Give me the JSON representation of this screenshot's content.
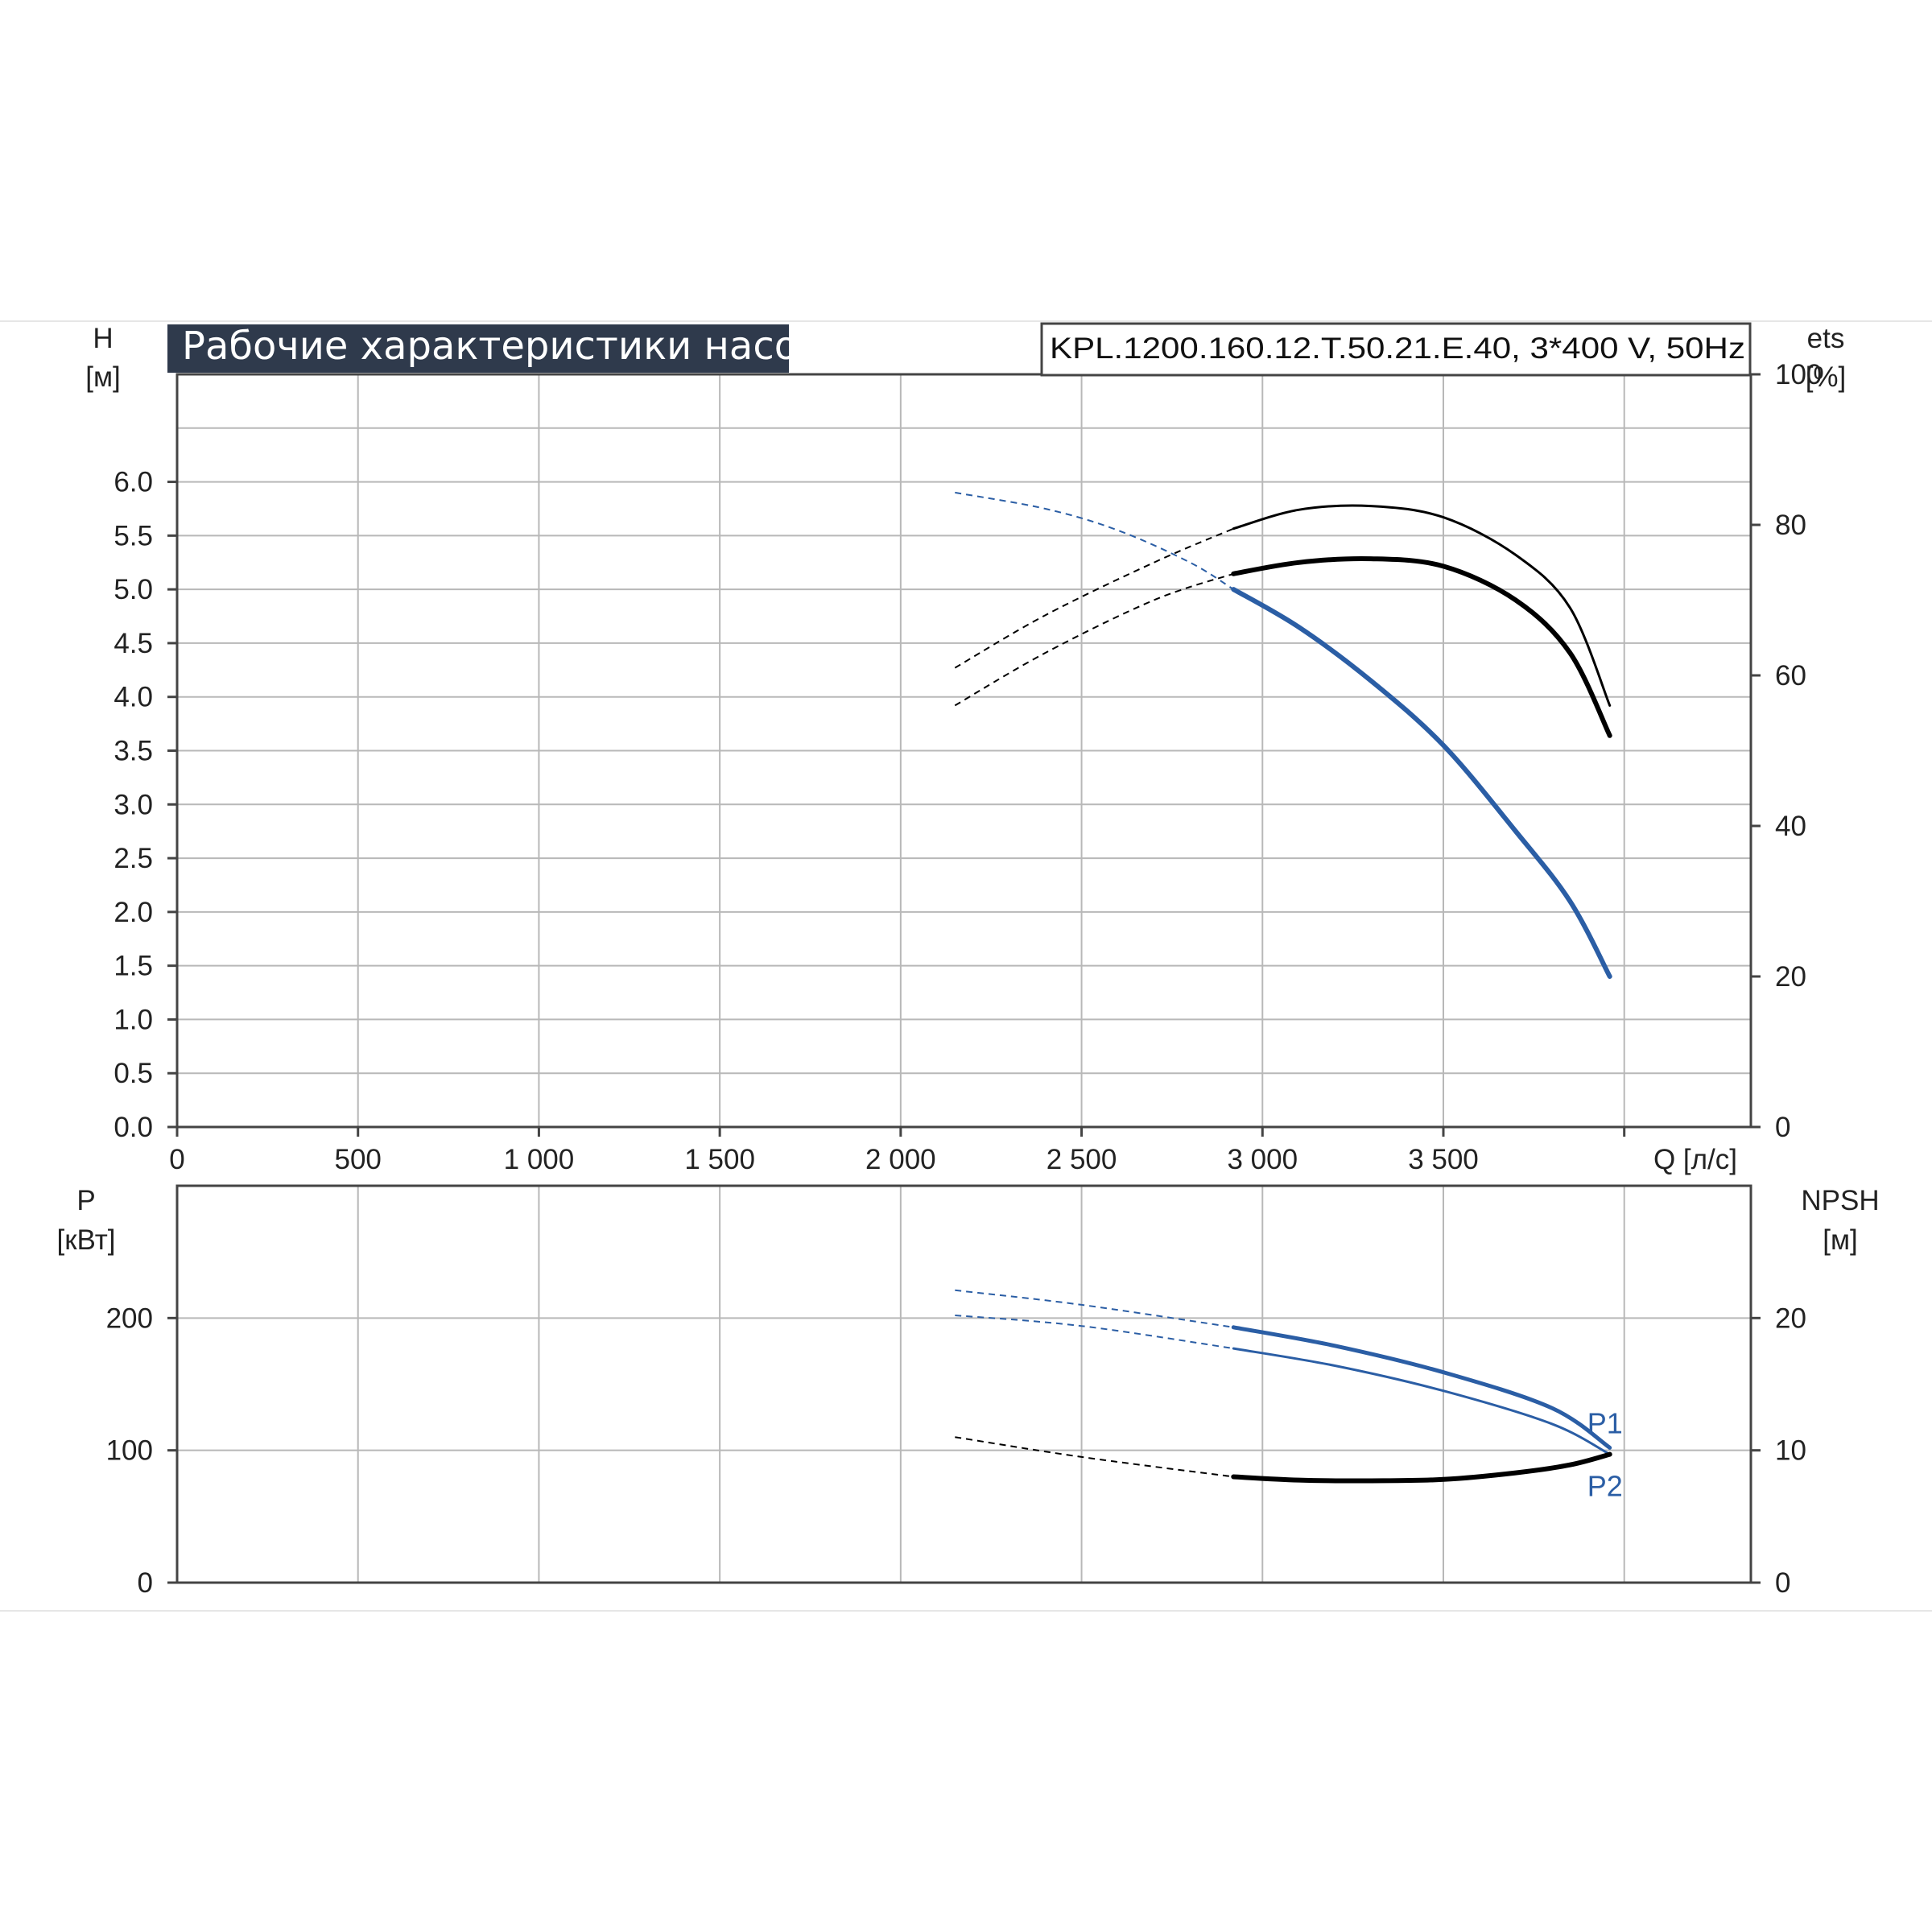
{
  "header": {
    "title": "Рабочие характеристики насоса",
    "model": "KPL.1200.160.12.T.50.21.E.40, 3*400 V, 50Hz"
  },
  "colors": {
    "background": "#ffffff",
    "grid": "#b8b8b8",
    "axis": "#444444",
    "title_bg": "#2f3a4c",
    "head_curve": "#2b5ea5",
    "power_curve": "#2b5ea5",
    "efficiency_curve": "#000000",
    "npsh_curve": "#000000"
  },
  "chart_data": [
    {
      "type": "line",
      "title": "Рабочие характеристики насоса",
      "xlabel": "Q [л/с]",
      "ylabel": "H [м]",
      "y2label": "ets [%]",
      "xlim": [
        0,
        4350
      ],
      "ylim": [
        0,
        7
      ],
      "y2lim": [
        0,
        100
      ],
      "x_ticks": [
        0,
        500,
        1000,
        1500,
        2000,
        2500,
        3000,
        3500
      ],
      "x_tick_labels": [
        "0",
        "500",
        "1 000",
        "1 500",
        "2 000",
        "2 500",
        "3 000",
        "3 500"
      ],
      "y_ticks": [
        0.0,
        0.5,
        1.0,
        1.5,
        2.0,
        2.5,
        3.0,
        3.5,
        4.0,
        4.5,
        5.0,
        5.5,
        6.0
      ],
      "y_tick_labels": [
        "0.0",
        "0.5",
        "1.0",
        "1.5",
        "2.0",
        "2.5",
        "3.0",
        "3.5",
        "4.0",
        "4.5",
        "5.0",
        "5.5",
        "6.0"
      ],
      "y2_ticks": [
        0,
        20,
        40,
        60,
        80,
        100
      ],
      "y2_tick_labels": [
        "0",
        "20",
        "40",
        "60",
        "80",
        "100"
      ],
      "grid": true,
      "series": [
        {
          "axis": "left",
          "dashed_x": [
            2150,
            2400,
            2600,
            2800,
            2920
          ],
          "dashed_y": [
            5.9,
            5.75,
            5.55,
            5.25,
            5.0
          ],
          "x": [
            2920,
            3100,
            3300,
            3500,
            3700,
            3850,
            3960
          ],
          "y": [
            5.0,
            4.65,
            4.15,
            3.55,
            2.75,
            2.1,
            1.4
          ]
        },
        {
          "axis": "right",
          "dashed_x": [
            2150,
            2400,
            2700,
            2920
          ],
          "dashed_y": [
            61,
            68,
            75,
            79.5
          ],
          "x": [
            2920,
            3100,
            3300,
            3500,
            3700,
            3850,
            3960
          ],
          "y": [
            79.5,
            82,
            82.5,
            81,
            76,
            69,
            56
          ]
        },
        {
          "axis": "right",
          "dashed_x": [
            2150,
            2400,
            2700,
            2920
          ],
          "dashed_y": [
            56,
            63,
            70,
            73.5
          ],
          "x": [
            2920,
            3100,
            3300,
            3500,
            3700,
            3850,
            3960
          ],
          "y": [
            73.5,
            75,
            75.5,
            74.5,
            70,
            63,
            52
          ]
        }
      ]
    },
    {
      "type": "line",
      "xlabel": "Q [л/с]",
      "ylabel": "P [кВт]",
      "y2label": "NPSH [м]",
      "xlim": [
        0,
        4350
      ],
      "ylim": [
        0,
        300
      ],
      "y2lim": [
        0,
        30
      ],
      "y_ticks": [
        0,
        100,
        200
      ],
      "y_tick_labels": [
        "0",
        "100",
        "200"
      ],
      "y2_ticks": [
        0,
        10,
        20
      ],
      "y2_tick_labels": [
        "0",
        "10",
        "20"
      ],
      "grid": true,
      "series": [
        {
          "name": "P1",
          "axis": "left",
          "dashed_x": [
            2150,
            2500,
            2920
          ],
          "dashed_y": [
            221,
            210,
            193
          ],
          "x": [
            2920,
            3200,
            3500,
            3800,
            3960
          ],
          "y": [
            193,
            179,
            159,
            132,
            102
          ]
        },
        {
          "name": "P2",
          "axis": "left",
          "dashed_x": [
            2150,
            2500,
            2920
          ],
          "dashed_y": [
            202,
            194,
            177
          ],
          "x": [
            2920,
            3200,
            3500,
            3800,
            3960
          ],
          "y": [
            177,
            164,
            145,
            120,
            97
          ]
        },
        {
          "axis": "right",
          "dashed_x": [
            2150,
            2500,
            2920
          ],
          "dashed_y": [
            11,
            9.5,
            8.0
          ],
          "x": [
            2920,
            3100,
            3300,
            3500,
            3700,
            3850,
            3960
          ],
          "y": [
            8.0,
            7.75,
            7.7,
            7.8,
            8.3,
            8.9,
            9.7
          ]
        }
      ]
    }
  ]
}
